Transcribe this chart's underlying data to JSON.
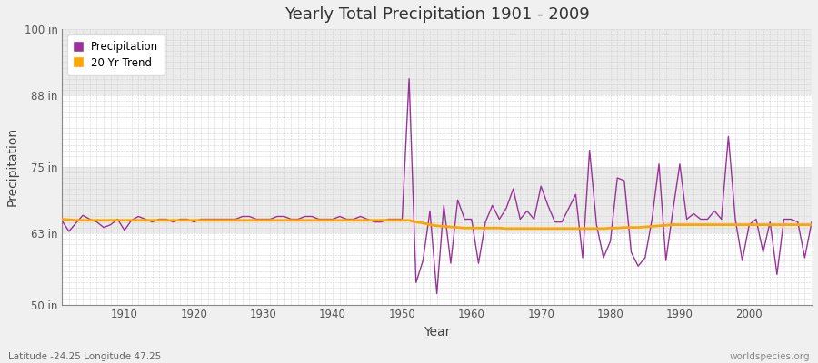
{
  "title": "Yearly Total Precipitation 1901 - 2009",
  "xlabel": "Year",
  "ylabel": "Precipitation",
  "subtitle": "Latitude -24.25 Longitude 47.25",
  "watermark": "worldspecies.org",
  "ylim": [
    50,
    100
  ],
  "yticks": [
    50,
    63,
    75,
    88,
    100
  ],
  "ytick_labels": [
    "50 in",
    "63 in",
    "75 in",
    "88 in",
    "100 in"
  ],
  "xlim": [
    1901,
    2009
  ],
  "xticks": [
    1910,
    1920,
    1930,
    1940,
    1950,
    1960,
    1970,
    1980,
    1990,
    2000
  ],
  "precip_color": "#993399",
  "trend_color": "#FFA500",
  "bg_color": "#F5F5F5",
  "plot_bg_color": "#FFFFFF",
  "band_color1": "#FFFFFF",
  "band_color2": "#EBEBEB",
  "legend_labels": [
    "Precipitation",
    "20 Yr Trend"
  ],
  "years": [
    1901,
    1902,
    1903,
    1904,
    1905,
    1906,
    1907,
    1908,
    1909,
    1910,
    1911,
    1912,
    1913,
    1914,
    1915,
    1916,
    1917,
    1918,
    1919,
    1920,
    1921,
    1922,
    1923,
    1924,
    1925,
    1926,
    1927,
    1928,
    1929,
    1930,
    1931,
    1932,
    1933,
    1934,
    1935,
    1936,
    1937,
    1938,
    1939,
    1940,
    1941,
    1942,
    1943,
    1944,
    1945,
    1946,
    1947,
    1948,
    1949,
    1950,
    1951,
    1952,
    1953,
    1954,
    1955,
    1956,
    1957,
    1958,
    1959,
    1960,
    1961,
    1962,
    1963,
    1964,
    1965,
    1966,
    1967,
    1968,
    1969,
    1970,
    1971,
    1972,
    1973,
    1974,
    1975,
    1976,
    1977,
    1978,
    1979,
    1980,
    1981,
    1982,
    1983,
    1984,
    1985,
    1986,
    1987,
    1988,
    1989,
    1990,
    1991,
    1992,
    1993,
    1994,
    1995,
    1996,
    1997,
    1998,
    1999,
    2000,
    2001,
    2002,
    2003,
    2004,
    2005,
    2006,
    2007,
    2008,
    2009
  ],
  "precipitation": [
    65.2,
    63.3,
    64.8,
    66.2,
    65.5,
    65.0,
    64.0,
    64.5,
    65.5,
    63.5,
    65.3,
    66.0,
    65.5,
    65.0,
    65.5,
    65.5,
    65.0,
    65.5,
    65.5,
    65.0,
    65.5,
    65.5,
    65.5,
    65.5,
    65.5,
    65.5,
    66.0,
    66.0,
    65.5,
    65.5,
    65.5,
    66.0,
    66.0,
    65.5,
    65.5,
    66.0,
    66.0,
    65.5,
    65.5,
    65.5,
    66.0,
    65.5,
    65.5,
    66.0,
    65.5,
    65.0,
    65.0,
    65.5,
    65.5,
    65.5,
    91.0,
    54.0,
    58.0,
    67.0,
    52.0,
    68.0,
    57.5,
    69.0,
    65.5,
    65.5,
    57.5,
    65.0,
    68.0,
    65.5,
    67.5,
    71.0,
    65.5,
    67.0,
    65.5,
    71.5,
    68.0,
    65.0,
    65.0,
    67.5,
    70.0,
    58.5,
    78.0,
    64.5,
    58.5,
    61.5,
    73.0,
    72.5,
    59.5,
    57.0,
    58.5,
    65.5,
    75.5,
    58.0,
    67.0,
    75.5,
    65.5,
    66.5,
    65.5,
    65.5,
    67.0,
    65.5,
    80.5,
    65.5,
    58.0,
    64.5,
    65.5,
    59.5,
    65.0,
    55.5,
    65.5,
    65.5,
    65.0,
    58.5,
    65.0
  ],
  "trend": [
    65.5,
    65.4,
    65.3,
    65.3,
    65.3,
    65.3,
    65.3,
    65.3,
    65.3,
    65.3,
    65.3,
    65.3,
    65.3,
    65.3,
    65.3,
    65.3,
    65.3,
    65.3,
    65.3,
    65.3,
    65.3,
    65.3,
    65.3,
    65.3,
    65.3,
    65.3,
    65.3,
    65.3,
    65.3,
    65.3,
    65.3,
    65.3,
    65.3,
    65.3,
    65.3,
    65.3,
    65.3,
    65.3,
    65.3,
    65.3,
    65.3,
    65.3,
    65.3,
    65.3,
    65.3,
    65.3,
    65.3,
    65.3,
    65.3,
    65.3,
    65.3,
    65.0,
    64.8,
    64.5,
    64.3,
    64.2,
    64.1,
    64.0,
    63.9,
    63.9,
    63.9,
    63.9,
    63.9,
    63.9,
    63.8,
    63.8,
    63.8,
    63.8,
    63.8,
    63.8,
    63.8,
    63.8,
    63.8,
    63.8,
    63.8,
    63.8,
    63.8,
    63.8,
    63.8,
    63.9,
    63.9,
    64.0,
    64.0,
    64.0,
    64.1,
    64.2,
    64.3,
    64.4,
    64.5,
    64.5,
    64.5,
    64.5,
    64.5,
    64.5,
    64.5,
    64.5,
    64.5,
    64.5,
    64.5,
    64.5,
    64.5,
    64.5,
    64.5,
    64.5,
    64.5,
    64.5,
    64.5,
    64.5,
    64.5
  ]
}
